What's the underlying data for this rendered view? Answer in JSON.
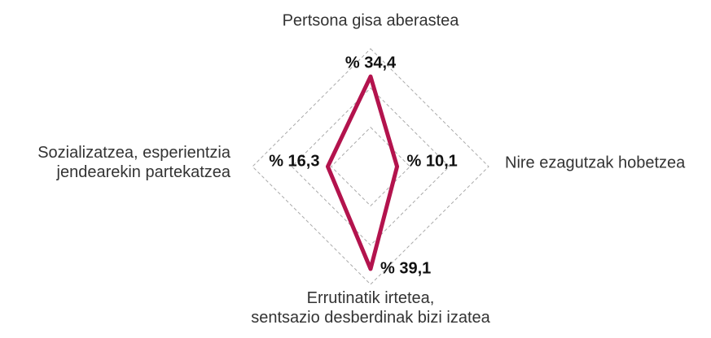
{
  "chart_data": {
    "type": "radar",
    "categories": [
      "Pertsona gisa aberastea",
      "Nire ezagutzak hobetzea",
      "Errutinatik irtetea,\nsentsazio desberdinak bizi izatea",
      "Sozializatzea, esperientzia\njendearekin partekatzea"
    ],
    "values": [
      34.4,
      10.1,
      39.1,
      16.3
    ],
    "value_labels": [
      "% 34,4",
      "% 10,1",
      "% 39,1",
      "% 16,3"
    ],
    "color": "#b3134d",
    "ylim": [
      0,
      45
    ],
    "yticks": [
      15,
      30,
      45
    ],
    "grid": true
  }
}
